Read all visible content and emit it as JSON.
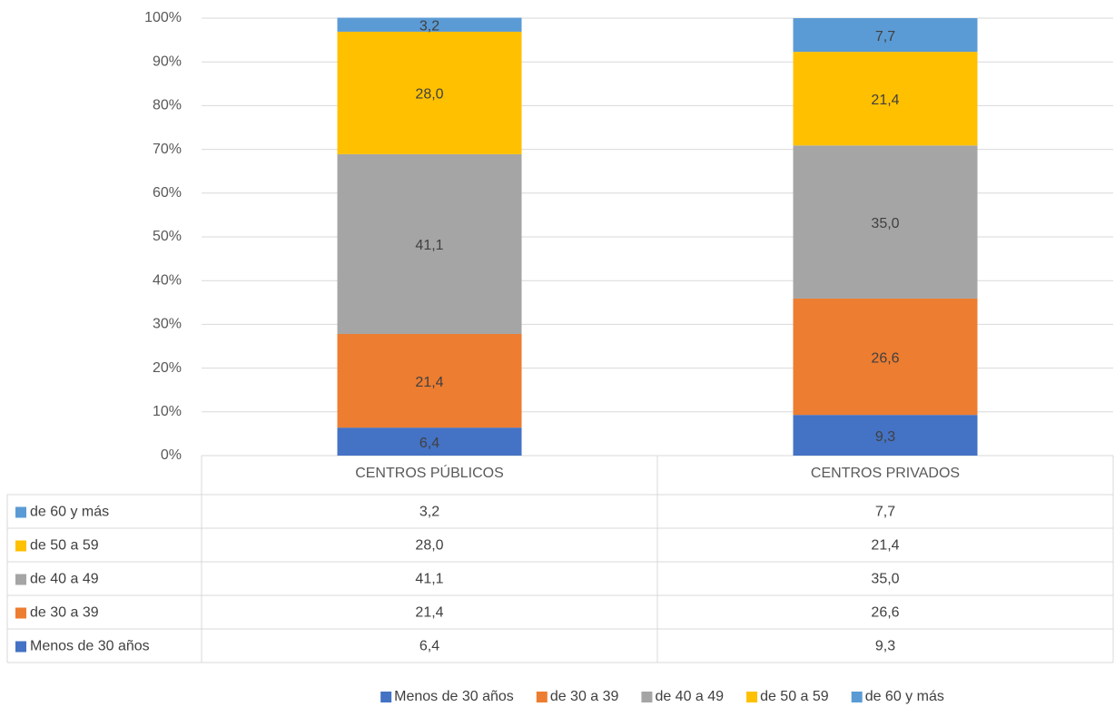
{
  "chart_data": {
    "type": "stacked_bar",
    "categories": [
      "CENTROS PÚBLICOS",
      "CENTROS PRIVADOS"
    ],
    "series": [
      {
        "name": "Menos de 30 años",
        "color": "#4472c4",
        "values": [
          6.4,
          9.3
        ],
        "value_labels": [
          "6,4",
          "9,3"
        ]
      },
      {
        "name": "de 30 a 39",
        "color": "#ed7d31",
        "values": [
          21.4,
          26.6
        ],
        "value_labels": [
          "21,4",
          "26,6"
        ]
      },
      {
        "name": "de 40 a 49",
        "color": "#a5a5a5",
        "values": [
          41.1,
          35.0
        ],
        "value_labels": [
          "41,1",
          "35,0"
        ]
      },
      {
        "name": "de 50 a 59",
        "color": "#ffc000",
        "values": [
          28.0,
          21.4
        ],
        "value_labels": [
          "28,0",
          "21,4"
        ]
      },
      {
        "name": "de 60 y más",
        "color": "#5b9bd5",
        "values": [
          3.2,
          7.7
        ],
        "value_labels": [
          "3,2",
          "7,7"
        ]
      }
    ],
    "ylim": [
      0,
      100
    ],
    "yticks": [
      {
        "value": 0,
        "label": "0%"
      },
      {
        "value": 10,
        "label": "10%"
      },
      {
        "value": 20,
        "label": "20%"
      },
      {
        "value": 30,
        "label": "30%"
      },
      {
        "value": 40,
        "label": "40%"
      },
      {
        "value": 50,
        "label": "50%"
      },
      {
        "value": 60,
        "label": "60%"
      },
      {
        "value": 70,
        "label": "70%"
      },
      {
        "value": 80,
        "label": "80%"
      },
      {
        "value": 90,
        "label": "90%"
      },
      {
        "value": 100,
        "label": "100%"
      }
    ],
    "grid": true,
    "legend": "bottom",
    "data_table": true
  }
}
